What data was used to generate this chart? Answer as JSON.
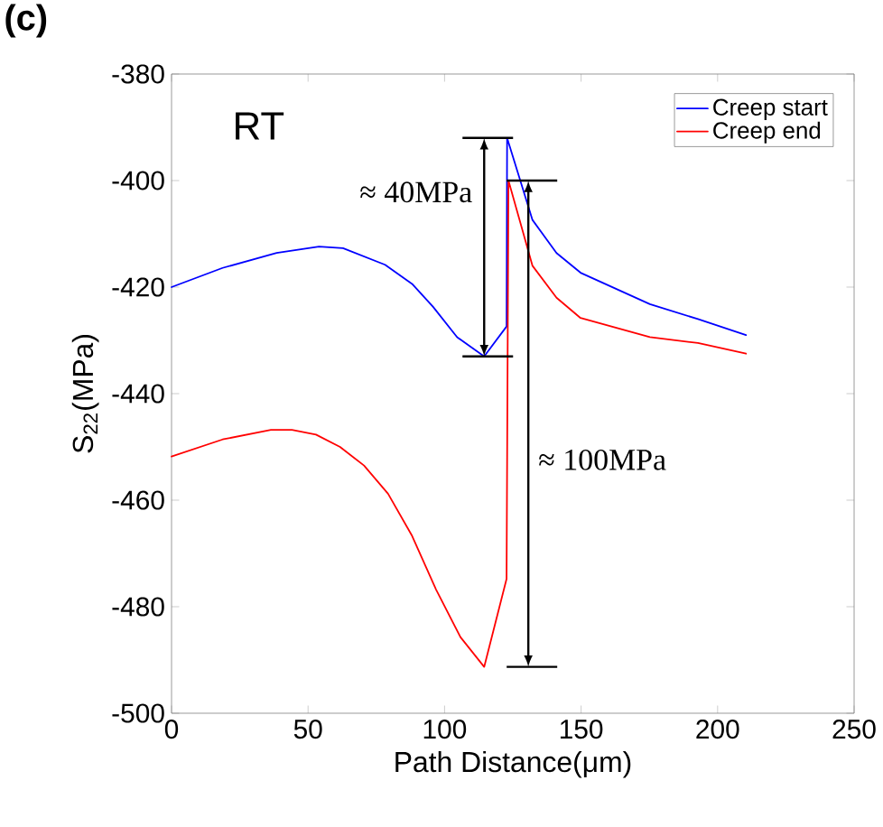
{
  "chart_data": {
    "type": "line",
    "title": "(c)",
    "xlabel": "Path Distance(μm)",
    "ylabel": "S$_{22}$(MPa)",
    "xlim": [
      0,
      250
    ],
    "xticks": [
      0,
      50,
      100,
      150,
      200,
      250
    ],
    "ylim": [
      -500,
      -380
    ],
    "yticks": [
      -500,
      -480,
      -460,
      -440,
      -420,
      -400,
      -380
    ],
    "legend": "top right",
    "grid": false,
    "marker": "none",
    "line_style": "solid",
    "series": [
      {
        "name": "Creep start",
        "color": "#0000ff",
        "x": [
          0,
          18.7,
          38.5,
          54,
          62.8,
          78.2,
          88.1,
          95.8,
          104.6,
          114.5,
          122.7,
          122.9,
          132.2,
          141,
          149.8,
          175.2,
          192.8,
          210.4
        ],
        "values": [
          -420,
          -416.4,
          -413.6,
          -412.4,
          -412.7,
          -415.8,
          -419.4,
          -423.7,
          -429.4,
          -433,
          -427.4,
          -392,
          -407.4,
          -413.6,
          -417.3,
          -423.2,
          -426,
          -429
        ]
      },
      {
        "name": "Creep end",
        "color": "#ff0000",
        "x": [
          0,
          18.7,
          36.4,
          44.1,
          52.9,
          61.7,
          70.5,
          79.3,
          88.1,
          96.9,
          105.8,
          114.5,
          122.7,
          123.4,
          132.2,
          141,
          149.8,
          175.2,
          192.8,
          210.4
        ],
        "values": [
          -451.8,
          -448.6,
          -446.8,
          -446.8,
          -447.7,
          -450,
          -453.5,
          -458.8,
          -466.7,
          -476.8,
          -485.7,
          -491.3,
          -474.8,
          -400,
          -416,
          -422,
          -425.8,
          -429.4,
          -430.5,
          -432.5
        ]
      }
    ],
    "annotations": [
      "RT",
      {
        "text": "≈ 40MPa",
        "x": 114.5,
        "y": -433
      },
      "≈ 100MPa"
    ]
  }
}
